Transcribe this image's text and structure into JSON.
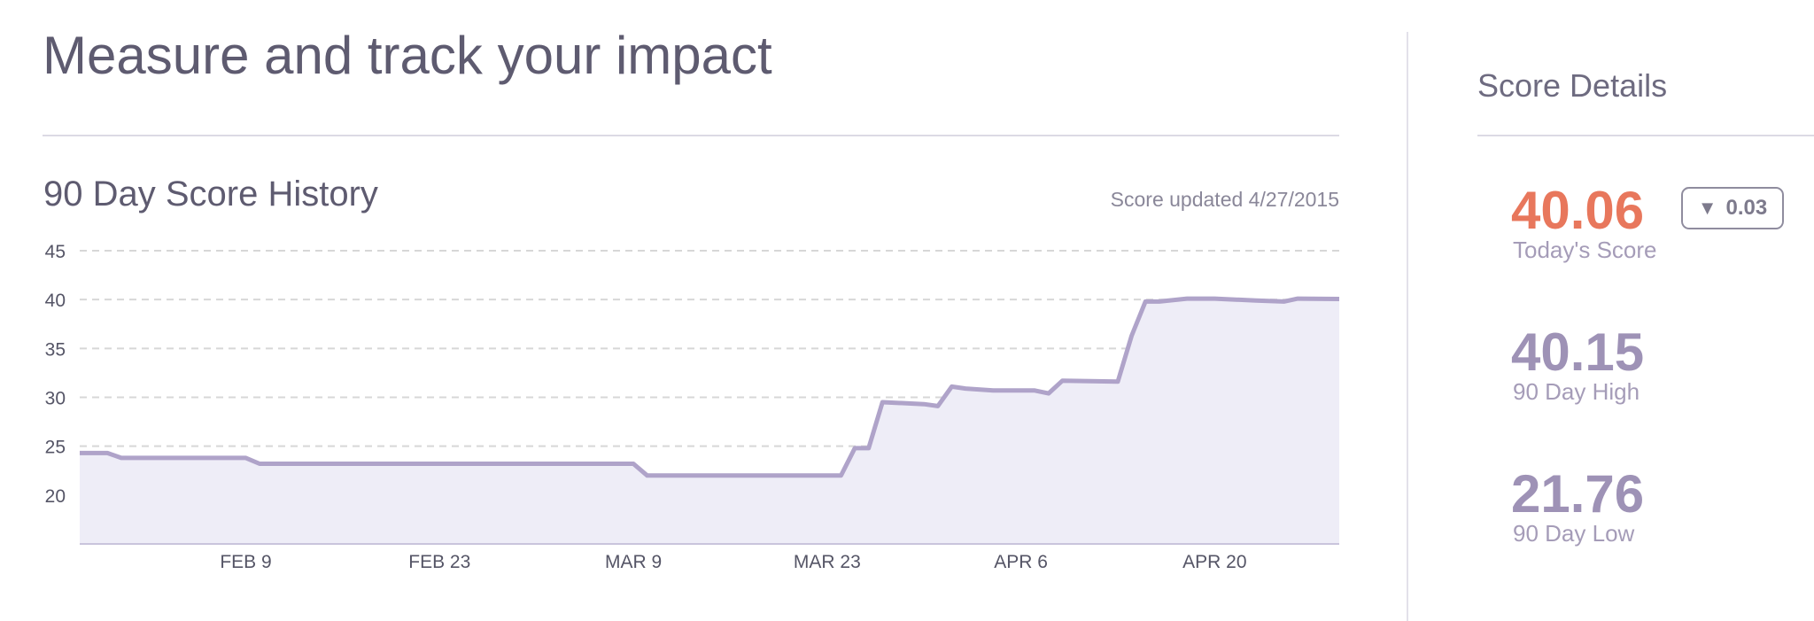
{
  "header": {
    "title": "Measure and track your impact"
  },
  "history": {
    "title": "90 Day Score History",
    "updated": "Score updated 4/27/2015"
  },
  "details": {
    "title": "Score Details",
    "today": {
      "value": "40.06",
      "label": "Today's Score",
      "color": "#e8775c"
    },
    "change": {
      "value": "0.03",
      "direction": "down",
      "icon": "down-triangle-icon"
    },
    "high": {
      "value": "40.15",
      "label": "90 Day High",
      "color": "#9e92b6"
    },
    "low": {
      "value": "21.76",
      "label": "90 Day Low",
      "color": "#9e92b6"
    }
  },
  "colors": {
    "line": "#afa3c9",
    "fill": "#eeedf7",
    "grid": "#d7d7d7"
  },
  "chart_data": {
    "type": "area",
    "title": "90 Day Score History",
    "xlabel": "",
    "ylabel": "",
    "x_ticks": [
      "FEB 9",
      "FEB 23",
      "MAR 9",
      "MAR 23",
      "APR 6",
      "APR 20"
    ],
    "x_range": [
      "2015-01-28",
      "2015-04-29"
    ],
    "y_ticks": [
      20,
      25,
      30,
      35,
      40,
      45
    ],
    "ylim": [
      15,
      45
    ],
    "grid": true,
    "legend": "none",
    "x": [
      "2015-01-28",
      "2015-01-30",
      "2015-01-31",
      "2015-02-09",
      "2015-02-10",
      "2015-02-23",
      "2015-03-09",
      "2015-03-10",
      "2015-03-20",
      "2015-03-24",
      "2015-03-25",
      "2015-03-26",
      "2015-03-27",
      "2015-03-30",
      "2015-03-31",
      "2015-04-01",
      "2015-04-02",
      "2015-04-04",
      "2015-04-07",
      "2015-04-08",
      "2015-04-09",
      "2015-04-13",
      "2015-04-14",
      "2015-04-15",
      "2015-04-16",
      "2015-04-18",
      "2015-04-20",
      "2015-04-23",
      "2015-04-25",
      "2015-04-26",
      "2015-04-29"
    ],
    "values": [
      24.3,
      24.3,
      23.8,
      23.8,
      23.2,
      23.2,
      23.2,
      22.0,
      22.0,
      22.0,
      24.8,
      24.8,
      29.5,
      29.3,
      29.1,
      31.1,
      30.9,
      30.7,
      30.7,
      30.4,
      31.7,
      31.6,
      36.3,
      39.8,
      39.8,
      40.1,
      40.1,
      39.9,
      39.8,
      40.1,
      40.06
    ]
  }
}
